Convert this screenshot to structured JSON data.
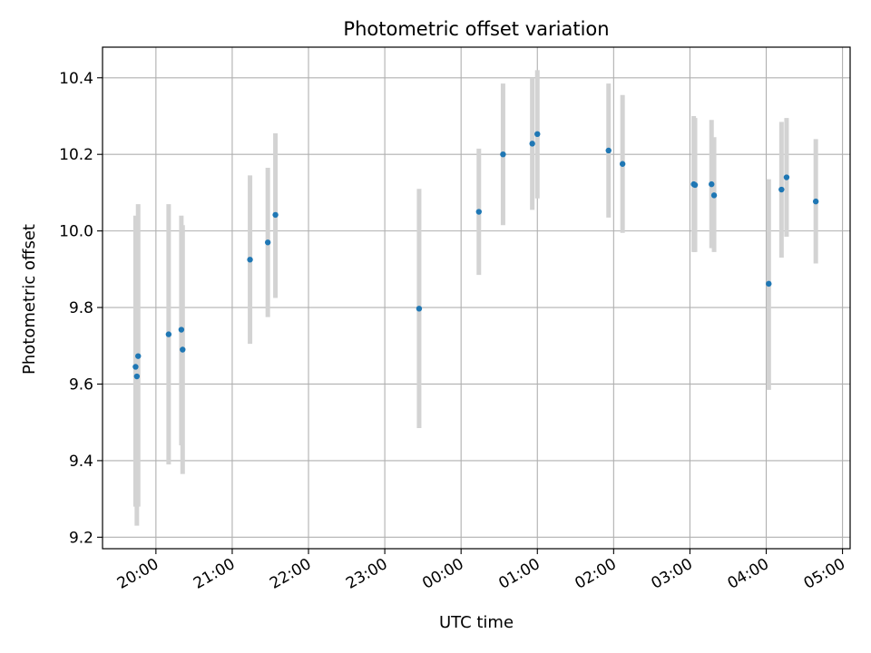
{
  "chart_data": {
    "type": "scatter",
    "title": "Photometric offset variation",
    "xlabel": "UTC time",
    "ylabel": "Photometric offset",
    "x_ticks": [
      "20:00",
      "21:00",
      "22:00",
      "23:00",
      "00:00",
      "01:00",
      "02:00",
      "03:00",
      "04:00",
      "05:00"
    ],
    "y_ticks": [
      "9.2",
      "9.4",
      "9.6",
      "9.8",
      "10.0",
      "10.2",
      "10.4"
    ],
    "x_range_hours": [
      19.3,
      29.1
    ],
    "ylim": [
      9.17,
      10.48
    ],
    "grid": true,
    "colors": {
      "point": "#1f77b4",
      "errorbar": "#d3d3d3",
      "grid": "#b0b0b0"
    },
    "points": [
      {
        "x": "19:44",
        "y": 9.645,
        "err_low": 9.28,
        "err_high": 10.04
      },
      {
        "x": "19:45",
        "y": 9.62,
        "err_low": 9.23,
        "err_high": 10.01
      },
      {
        "x": "19:46",
        "y": 9.673,
        "err_low": 9.28,
        "err_high": 10.07
      },
      {
        "x": "20:10",
        "y": 9.73,
        "err_low": 9.39,
        "err_high": 10.07
      },
      {
        "x": "20:20",
        "y": 9.742,
        "err_low": 9.44,
        "err_high": 10.04
      },
      {
        "x": "20:21",
        "y": 9.69,
        "err_low": 9.365,
        "err_high": 10.015
      },
      {
        "x": "21:14",
        "y": 9.925,
        "err_low": 9.705,
        "err_high": 10.145
      },
      {
        "x": "21:28",
        "y": 9.97,
        "err_low": 9.775,
        "err_high": 10.165
      },
      {
        "x": "21:34",
        "y": 10.042,
        "err_low": 9.825,
        "err_high": 10.255
      },
      {
        "x": "23:27",
        "y": 9.797,
        "err_low": 9.485,
        "err_high": 10.11
      },
      {
        "x": "00:14",
        "y": 10.05,
        "err_low": 9.885,
        "err_high": 10.215
      },
      {
        "x": "00:33",
        "y": 10.2,
        "err_low": 10.015,
        "err_high": 10.385
      },
      {
        "x": "00:56",
        "y": 10.228,
        "err_low": 10.055,
        "err_high": 10.4
      },
      {
        "x": "01:00",
        "y": 10.253,
        "err_low": 10.085,
        "err_high": 10.42
      },
      {
        "x": "01:56",
        "y": 10.21,
        "err_low": 10.035,
        "err_high": 10.385
      },
      {
        "x": "02:07",
        "y": 10.175,
        "err_low": 9.995,
        "err_high": 10.355
      },
      {
        "x": "03:03",
        "y": 10.122,
        "err_low": 9.945,
        "err_high": 10.3
      },
      {
        "x": "03:04",
        "y": 10.12,
        "err_low": 9.945,
        "err_high": 10.295
      },
      {
        "x": "03:17",
        "y": 10.122,
        "err_low": 9.955,
        "err_high": 10.29
      },
      {
        "x": "03:19",
        "y": 10.093,
        "err_low": 9.945,
        "err_high": 10.245
      },
      {
        "x": "04:02",
        "y": 9.862,
        "err_low": 9.585,
        "err_high": 10.135
      },
      {
        "x": "04:12",
        "y": 10.108,
        "err_low": 9.93,
        "err_high": 10.285
      },
      {
        "x": "04:16",
        "y": 10.14,
        "err_low": 9.985,
        "err_high": 10.295
      },
      {
        "x": "04:39",
        "y": 10.077,
        "err_low": 9.915,
        "err_high": 10.24
      }
    ]
  }
}
